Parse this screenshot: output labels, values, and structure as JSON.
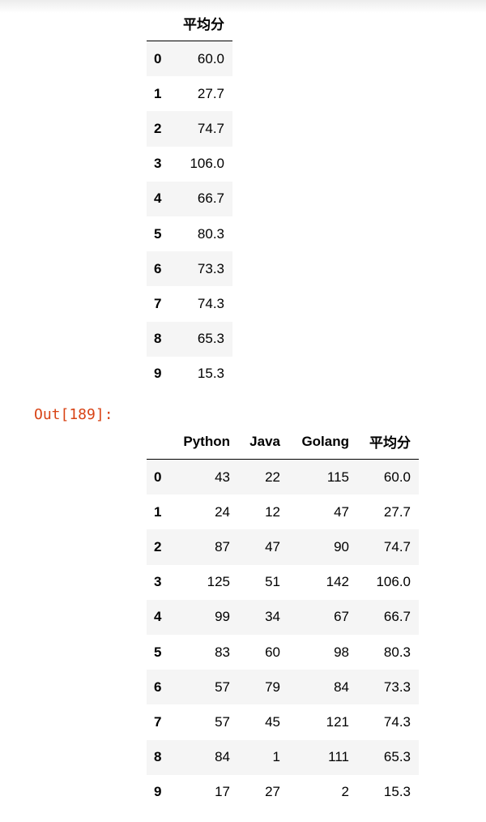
{
  "table1": {
    "columns": [
      "平均分"
    ],
    "index": [
      "0",
      "1",
      "2",
      "3",
      "4",
      "5",
      "6",
      "7",
      "8",
      "9"
    ],
    "rows": [
      [
        "60.0"
      ],
      [
        "27.7"
      ],
      [
        "74.7"
      ],
      [
        "106.0"
      ],
      [
        "66.7"
      ],
      [
        "80.3"
      ],
      [
        "73.3"
      ],
      [
        "74.3"
      ],
      [
        "65.3"
      ],
      [
        "15.3"
      ]
    ]
  },
  "output_prompt": "Out[189]:",
  "prompt_color": "#d84315",
  "table2": {
    "columns": [
      "Python",
      "Java",
      "Golang",
      "平均分"
    ],
    "index": [
      "0",
      "1",
      "2",
      "3",
      "4",
      "5",
      "6",
      "7",
      "8",
      "9"
    ],
    "rows": [
      [
        "43",
        "22",
        "115",
        "60.0"
      ],
      [
        "24",
        "12",
        "47",
        "27.7"
      ],
      [
        "87",
        "47",
        "90",
        "74.7"
      ],
      [
        "125",
        "51",
        "142",
        "106.0"
      ],
      [
        "99",
        "34",
        "67",
        "66.7"
      ],
      [
        "83",
        "60",
        "98",
        "80.3"
      ],
      [
        "57",
        "79",
        "84",
        "73.3"
      ],
      [
        "57",
        "45",
        "121",
        "74.3"
      ],
      [
        "84",
        "1",
        "111",
        "65.3"
      ],
      [
        "17",
        "27",
        "2",
        "15.3"
      ]
    ]
  }
}
